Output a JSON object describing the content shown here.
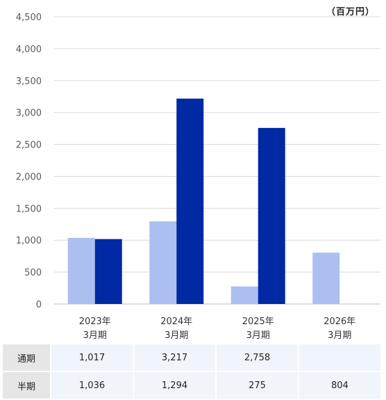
{
  "chart_data": {
    "type": "bar",
    "unit": "（百万円）",
    "categories": [
      [
        "2023年",
        "3月期"
      ],
      [
        "2024年",
        "3月期"
      ],
      [
        "2025年",
        "3月期"
      ],
      [
        "2026年",
        "3月期"
      ]
    ],
    "series": [
      {
        "name": "半期",
        "values": [
          1036,
          1294,
          275,
          804
        ],
        "color": "#adbff0"
      },
      {
        "name": "通期",
        "values": [
          1017,
          3217,
          2758,
          null
        ],
        "color": "#0029a3"
      }
    ],
    "ylim": [
      0,
      4500
    ],
    "yticks": [
      0,
      500,
      1000,
      1500,
      2000,
      2500,
      3000,
      3500,
      4000,
      4500
    ],
    "ytick_labels": [
      "0",
      "500",
      "1,000",
      "1,500",
      "2,000",
      "2,500",
      "3,000",
      "3,500",
      "4,000",
      "4,500"
    ],
    "grid": true,
    "title": "",
    "xlabel": "",
    "ylabel": ""
  },
  "table": {
    "rows": [
      {
        "label": "通期",
        "cells": [
          "1,017",
          "3,217",
          "2,758",
          ""
        ]
      },
      {
        "label": "半期",
        "cells": [
          "1,036",
          "1,294",
          "275",
          "804"
        ]
      }
    ]
  }
}
